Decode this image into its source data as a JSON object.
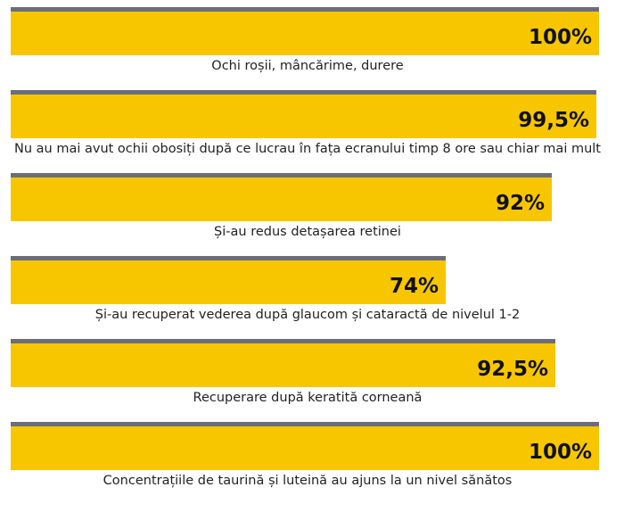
{
  "colors": {
    "bar_fill": "#f7c600",
    "bar_top": "#6b6e78",
    "value_text": "#111111",
    "label_text": "#222222"
  },
  "chart_data": {
    "type": "bar",
    "orientation": "horizontal",
    "categories": [
      "Ochi roșii, mâncărime, durere",
      "Nu au mai avut ochii obosiți după ce lucrau în fața ecranului timp 8 ore sau chiar mai mult",
      "Și-au redus detașarea retinei",
      "Și-au recuperat vederea după glaucom și cataractă de nivelul 1-2",
      "Recuperare după keratită corneană",
      "Concentrațiile de taurină și luteină au ajuns la un nivel sănătos"
    ],
    "values": [
      100,
      99.5,
      92,
      74,
      92.5,
      100
    ],
    "value_labels": [
      "100%",
      "99,5%",
      "92%",
      "74%",
      "92,5%",
      "100%"
    ],
    "xlim": [
      0,
      100
    ],
    "grid": false,
    "legend": "none"
  }
}
